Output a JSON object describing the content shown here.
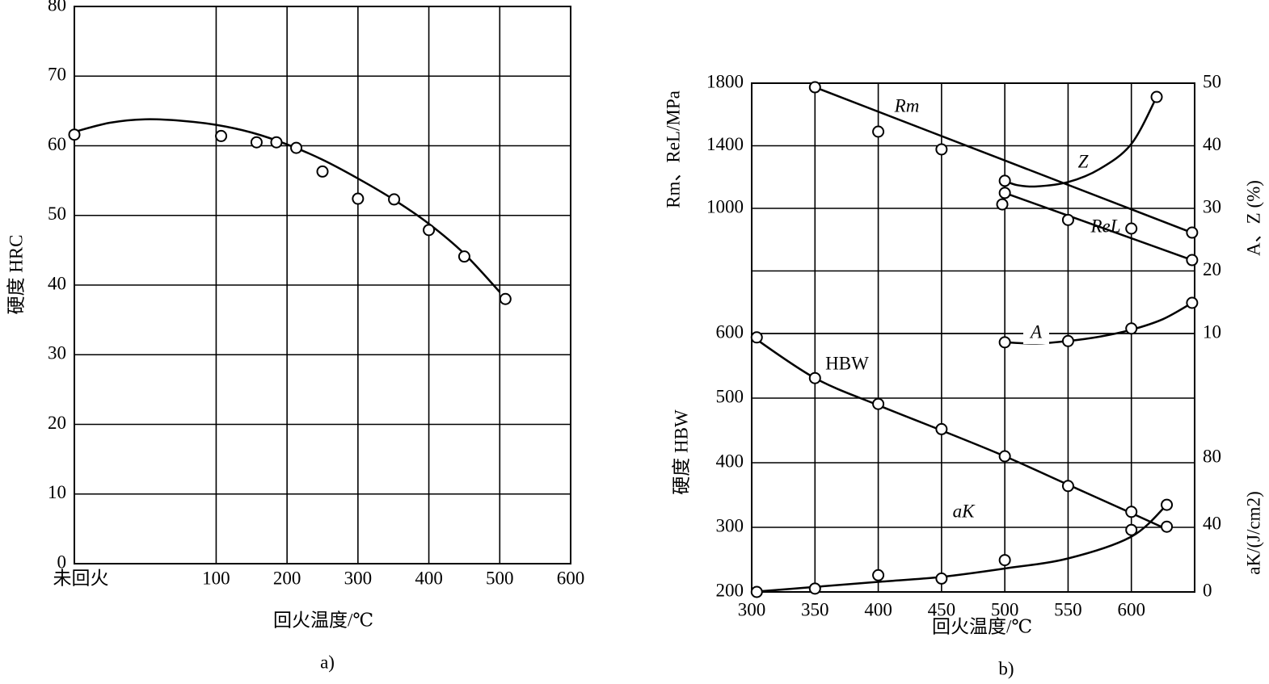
{
  "chart_data": [
    {
      "type": "line",
      "caption": "a)",
      "xlabel": "回火温度/℃",
      "ylabel": "硬度  HRC",
      "color": "#000000",
      "grid": true,
      "xlim": [
        -100,
        600
      ],
      "xticks": [
        {
          "value": -100,
          "label": "未回火"
        },
        100,
        200,
        300,
        400,
        500,
        600
      ],
      "ylim": [
        0,
        80
      ],
      "yticks": [
        0,
        10,
        20,
        30,
        40,
        50,
        60,
        70,
        80
      ],
      "series": [
        {
          "x": [
            -100,
            107,
            157,
            185,
            213,
            250,
            300,
            351,
            400,
            450,
            508
          ],
          "values": [
            61.6,
            61.4,
            60.5,
            60.5,
            59.7,
            56.3,
            52.4,
            52.3,
            47.9,
            44.1,
            38.0
          ],
          "fit_x": [
            -100,
            -50,
            0,
            50,
            100,
            150,
            200,
            250,
            300,
            350,
            400,
            450,
            500
          ],
          "fit_values": [
            62,
            63.3,
            63.8,
            63.6,
            63,
            61.9,
            60.2,
            58,
            55.3,
            52.3,
            48.8,
            44.5,
            39
          ]
        }
      ]
    },
    {
      "type": "line",
      "caption": "b)",
      "xlabel": "回火温度/℃",
      "color": "#000000",
      "grid": true,
      "xlim": [
        300,
        650
      ],
      "xticks": [
        300,
        350,
        400,
        450,
        500,
        550,
        600
      ],
      "axes": [
        {
          "ylabel": "Rm、ReL/MPa",
          "side": "left",
          "ylim": [
            600,
            1800
          ],
          "yticks": [
            1000,
            1400,
            1800
          ],
          "grid": false
        },
        {
          "ylabel": "硬度 HBW",
          "side": "left",
          "ylim": [
            200,
            600
          ],
          "yticks": [
            200,
            300,
            400,
            500,
            600
          ],
          "grid": true
        },
        {
          "ylabel": "A、Z (%)",
          "side": "right",
          "ylim": [
            10,
            50
          ],
          "yticks": [
            10,
            20,
            30,
            40,
            50
          ],
          "grid": true
        },
        {
          "ylabel": "aK/(J/cm2)",
          "side": "right",
          "ylim": [
            0,
            80
          ],
          "yticks": [
            0,
            40,
            80
          ],
          "grid": false
        }
      ],
      "series": [
        {
          "name": "Rm",
          "axis": 0,
          "x": [
            350,
            400,
            450,
            600,
            648
          ],
          "values": [
            1774,
            1491,
            1378,
            873,
            847
          ],
          "fit_x": [
            350,
            650
          ],
          "fit_values": [
            1774,
            840
          ]
        },
        {
          "name": "ReL",
          "axis": 0,
          "x": [
            500,
            498,
            550,
            648
          ],
          "values": [
            1100,
            1027,
            928,
            672
          ],
          "fit_x": [
            500,
            648
          ],
          "fit_values": [
            1100,
            672
          ]
        },
        {
          "name": "Z",
          "axis": 2,
          "x": [
            500,
            620
          ],
          "values": [
            34.4,
            47.8
          ],
          "fit_x": [
            500,
            510,
            525,
            550,
            575,
            600,
            620
          ],
          "fit_values": [
            34.4,
            33.7,
            33.5,
            34.2,
            36.3,
            40.3,
            47.8
          ]
        },
        {
          "name": "A",
          "axis": 2,
          "x": [
            500,
            550,
            600,
            648
          ],
          "values": [
            8.6,
            8.8,
            10.8,
            14.9
          ],
          "fit_x": [
            500,
            525,
            550,
            575,
            600,
            625,
            648
          ],
          "fit_values": [
            8.6,
            8.4,
            8.8,
            9.5,
            10.6,
            12.3,
            14.9
          ]
        },
        {
          "name": "HBW",
          "axis": 1,
          "x": [
            304,
            350,
            400,
            450,
            500,
            550,
            600,
            628
          ],
          "values": [
            594,
            531,
            491,
            452,
            410,
            364,
            324,
            301
          ],
          "fit_x": [
            300,
            350,
            400,
            450,
            500,
            550,
            600,
            628
          ],
          "fit_values": [
            596,
            531,
            489,
            450,
            410,
            366,
            322,
            297
          ]
        },
        {
          "name": "aK",
          "axis": 3,
          "x": [
            304,
            350,
            400,
            450,
            500,
            600,
            628
          ],
          "values": [
            0,
            2,
            10,
            8,
            19,
            37,
            52
          ],
          "fit_x": [
            300,
            350,
            400,
            450,
            500,
            550,
            600,
            628
          ],
          "fit_values": [
            0,
            3,
            6,
            9,
            14,
            20,
            33,
            52
          ]
        }
      ]
    }
  ]
}
